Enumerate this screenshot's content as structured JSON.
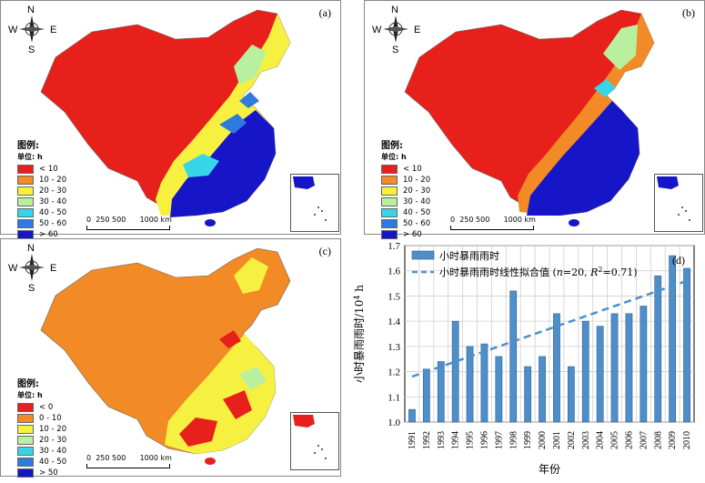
{
  "panels": [
    {
      "label": "(a)",
      "legend": {
        "title": "图例:",
        "unit": "单位: h",
        "items": [
          {
            "label": "< 10",
            "color": "#e8201c"
          },
          {
            "label": "10 - 20",
            "color": "#f28a25"
          },
          {
            "label": "20 - 30",
            "color": "#f6f141"
          },
          {
            "label": "30 - 40",
            "color": "#b8f0a0"
          },
          {
            "label": "40 - 50",
            "color": "#36d6e8"
          },
          {
            "label": "50 - 60",
            "color": "#2e7be0"
          },
          {
            "label": "> 60",
            "color": "#1616c8"
          }
        ]
      }
    },
    {
      "label": "(b)",
      "legend": {
        "title": "图例:",
        "unit": "单位: h",
        "items": [
          {
            "label": "< 10",
            "color": "#e8201c"
          },
          {
            "label": "10 - 20",
            "color": "#f28a25"
          },
          {
            "label": "20 - 30",
            "color": "#f6f141"
          },
          {
            "label": "30 - 40",
            "color": "#b8f0a0"
          },
          {
            "label": "40 - 50",
            "color": "#36d6e8"
          },
          {
            "label": "50 - 60",
            "color": "#2e7be0"
          },
          {
            "label": "> 60",
            "color": "#1616c8"
          }
        ]
      }
    },
    {
      "label": "(c)",
      "legend": {
        "title": "图例:",
        "unit": "单位: h",
        "items": [
          {
            "label": "< 0",
            "color": "#e8201c"
          },
          {
            "label": "0 - 10",
            "color": "#f28a25"
          },
          {
            "label": "10 - 20",
            "color": "#f6f141"
          },
          {
            "label": "20 - 30",
            "color": "#b8f0a0"
          },
          {
            "label": "30 - 40",
            "color": "#36d6e8"
          },
          {
            "label": "40 - 50",
            "color": "#2e7be0"
          },
          {
            "label": "> 50",
            "color": "#1616c8"
          }
        ]
      }
    }
  ],
  "compass": {
    "n": "N",
    "s": "S",
    "w": "W",
    "e": "E"
  },
  "scalebar": {
    "labels": [
      "0",
      "250",
      "500",
      "1000 km"
    ]
  },
  "chart_data": {
    "type": "bar",
    "panel_label": "(d)",
    "categories": [
      "1991",
      "1992",
      "1993",
      "1994",
      "1995",
      "1996",
      "1997",
      "1998",
      "1999",
      "2000",
      "2001",
      "2002",
      "2003",
      "2004",
      "2005",
      "2006",
      "2007",
      "2008",
      "2009",
      "2010"
    ],
    "series": [
      {
        "name": "小时暴雨雨时",
        "values": [
          1.05,
          1.21,
          1.24,
          1.4,
          1.3,
          1.31,
          1.26,
          1.52,
          1.22,
          1.26,
          1.43,
          1.22,
          1.4,
          1.38,
          1.43,
          1.43,
          1.46,
          1.58,
          1.66,
          1.61
        ],
        "color": "#4f8fc9"
      },
      {
        "name": "小时暴雨雨时线性拟合值 (n=20, R²=0.71)",
        "type": "line",
        "style": "dashed",
        "values": [
          1.18,
          1.2,
          1.22,
          1.24,
          1.26,
          1.28,
          1.3,
          1.32,
          1.34,
          1.36,
          1.38,
          1.4,
          1.42,
          1.44,
          1.46,
          1.48,
          1.5,
          1.52,
          1.54,
          1.56
        ],
        "color": "#4f8fc9"
      }
    ],
    "legend_fit_prefix": "小时暴雨雨时线性拟合值 (",
    "legend_fit_n": "n",
    "legend_fit_mid": "=20, ",
    "legend_fit_R": "R",
    "legend_fit_sup": "2",
    "legend_fit_end": "=0.71)",
    "xlabel": "年份",
    "ylabel": "小时暴雨雨时/10",
    "ylabel_sup": "4",
    "ylabel_unit": " h",
    "ylim": [
      1.0,
      1.7
    ],
    "yticks": [
      "1.0",
      "1.1",
      "1.2",
      "1.3",
      "1.4",
      "1.5",
      "1.6",
      "1.7"
    ],
    "grid": true,
    "legend_position": "top-left"
  }
}
